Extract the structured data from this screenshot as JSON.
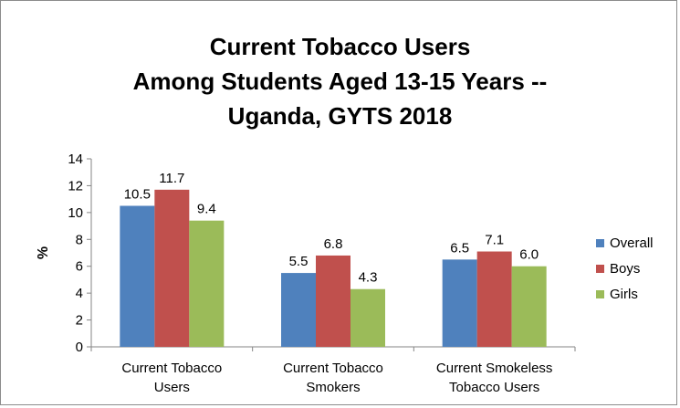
{
  "chart_data": {
    "type": "bar",
    "title_lines": [
      "Current Tobacco Users",
      "Among Students Aged 13-15 Years --",
      "Uganda, GYTS 2018"
    ],
    "ylabel": "%",
    "xlabel": "",
    "ylim": [
      0,
      14
    ],
    "yticks": [
      0,
      2,
      4,
      6,
      8,
      10,
      12,
      14
    ],
    "categories": [
      [
        "Current Tobacco",
        "Users"
      ],
      [
        "Current Tobacco",
        "Smokers"
      ],
      [
        "Current Smokeless",
        "Tobacco Users"
      ]
    ],
    "series": [
      {
        "name": "Overall",
        "color": "#4f81bd",
        "values": [
          10.5,
          5.5,
          6.5
        ],
        "labels": [
          "10.5",
          "5.5",
          "6.5"
        ]
      },
      {
        "name": "Boys",
        "color": "#c0504d",
        "values": [
          11.7,
          6.8,
          7.1
        ],
        "labels": [
          "11.7",
          "6.8",
          "7.1"
        ]
      },
      {
        "name": "Girls",
        "color": "#9bbb59",
        "values": [
          9.4,
          4.3,
          6.0
        ],
        "labels": [
          "9.4",
          "4.3",
          "6.0"
        ]
      }
    ],
    "grid": false,
    "legend_position": "right"
  }
}
